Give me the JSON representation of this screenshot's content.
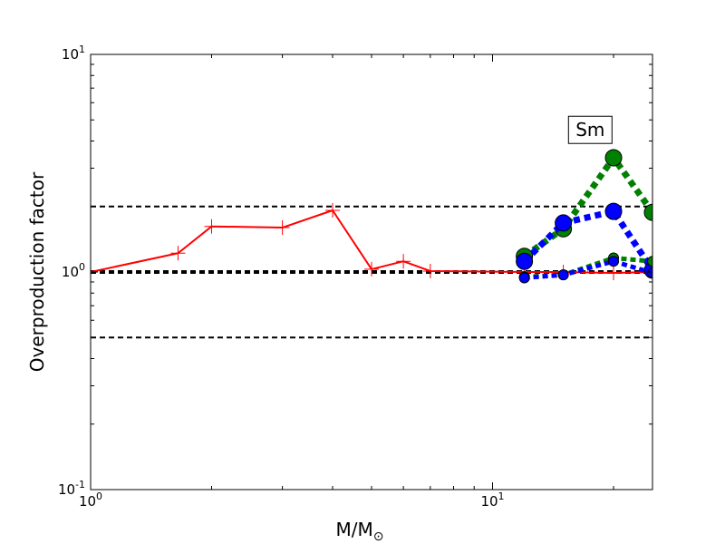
{
  "chart_data": {
    "type": "line",
    "title": "",
    "xlabel_main": "M/M",
    "xlabel_sub": "⊙",
    "ylabel": "Overproduction factor",
    "xscale": "log",
    "yscale": "log",
    "xlim": [
      1,
      25
    ],
    "ylim": [
      0.1,
      10
    ],
    "grid": false,
    "x_major_ticks": [
      {
        "value": 1,
        "base": "10",
        "exp": "0"
      },
      {
        "value": 10,
        "base": "10",
        "exp": "1"
      }
    ],
    "y_major_ticks": [
      {
        "value": 0.1,
        "base": "10",
        "exp": "-1"
      },
      {
        "value": 1,
        "base": "10",
        "exp": "0"
      },
      {
        "value": 10,
        "base": "10",
        "exp": "1"
      }
    ],
    "reference_lines": [
      {
        "y": 2.0,
        "color": "#000000",
        "style": "dashed",
        "width": 2
      },
      {
        "y": 1.0,
        "color": "#000000",
        "style": "dashed",
        "width": 4
      },
      {
        "y": 0.5,
        "color": "#000000",
        "style": "dashed",
        "width": 2
      }
    ],
    "annotation": {
      "text": "Sm",
      "x": 17.5,
      "y": 4.5
    },
    "series": [
      {
        "color": "#ff0000",
        "line": "solid",
        "marker": "plus",
        "x": [
          1.0,
          1.65,
          2.0,
          3.0,
          4.0,
          5.0,
          6.0,
          7.0,
          12.0,
          15.0,
          20.0,
          25.0
        ],
        "y": [
          1.0,
          1.22,
          1.62,
          1.6,
          1.92,
          1.03,
          1.12,
          1.01,
          1.0,
          1.0,
          0.99,
          1.0
        ]
      },
      {
        "color": "#008000",
        "line": "dotted",
        "marker": "circle",
        "marker_size": "large",
        "x": [
          12.0,
          15.0,
          20.0,
          25.0
        ],
        "y": [
          1.18,
          1.58,
          3.35,
          1.88
        ]
      },
      {
        "color": "#0000ff",
        "line": "dotted",
        "marker": "circle",
        "marker_size": "large",
        "x": [
          12.0,
          15.0,
          20.0,
          25.0
        ],
        "y": [
          1.12,
          1.68,
          1.9,
          1.02
        ]
      },
      {
        "color": "#008000",
        "line": "dotted",
        "marker": "circle",
        "marker_size": "small",
        "x": [
          12.0,
          15.0,
          20.0,
          25.0
        ],
        "y": [
          0.95,
          0.97,
          1.16,
          1.12
        ]
      },
      {
        "color": "#0000ff",
        "line": "dotted",
        "marker": "circle",
        "marker_size": "small",
        "x": [
          12.0,
          15.0,
          20.0,
          25.0
        ],
        "y": [
          0.94,
          0.97,
          1.12,
          0.99
        ]
      }
    ]
  }
}
